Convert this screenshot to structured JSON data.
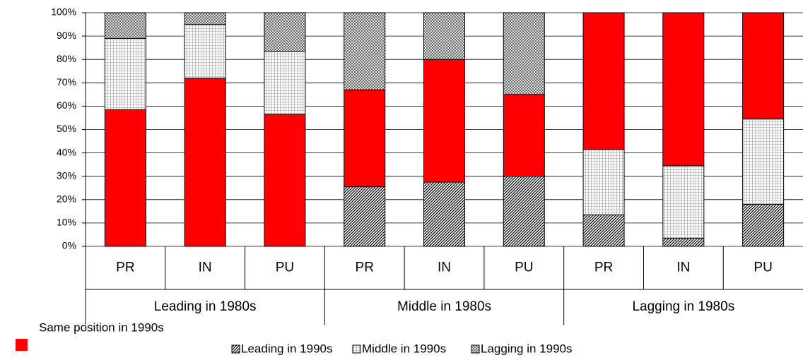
{
  "chart_data": {
    "type": "stacked-bar",
    "categories": [
      "PR",
      "IN",
      "PU",
      "PR",
      "IN",
      "PU",
      "PR",
      "IN",
      "PU"
    ],
    "groups": [
      "Leading in 1980s",
      "Middle in 1980s",
      "Lagging in 1980s"
    ],
    "series": [
      {
        "name": "Same position in 1990s",
        "color": "#ff0000",
        "pattern": "solid",
        "values": [
          58.5,
          72,
          56.5,
          41.5,
          52.5,
          35,
          58.5,
          65.5,
          45.5
        ]
      },
      {
        "name": "Leading in 1990s",
        "color": "#000000",
        "pattern": "diagonal",
        "values": [
          null,
          null,
          null,
          25.5,
          27.5,
          30,
          13.5,
          3.5,
          18
        ]
      },
      {
        "name": "Middle in 1990s",
        "color": "#999999",
        "pattern": "grid",
        "values": [
          30.5,
          23,
          27,
          null,
          null,
          null,
          28,
          31,
          36.5
        ]
      },
      {
        "name": "Lagging in 1990s",
        "color": "#555555",
        "pattern": "cross",
        "values": [
          11,
          5,
          16.5,
          33,
          20,
          35,
          null,
          null,
          null
        ]
      }
    ],
    "ylim": [
      0,
      100
    ],
    "yticks": [
      {
        "value": 0,
        "label": "0%"
      },
      {
        "value": 10,
        "label": "10%"
      },
      {
        "value": 20,
        "label": "20%"
      },
      {
        "value": 30,
        "label": "30%"
      },
      {
        "value": 40,
        "label": "40%"
      },
      {
        "value": 50,
        "label": "50%"
      },
      {
        "value": 60,
        "label": "60%"
      },
      {
        "value": 70,
        "label": "70%"
      },
      {
        "value": 80,
        "label": "80%"
      },
      {
        "value": 90,
        "label": "90%"
      },
      {
        "value": 100,
        "label": "100%"
      }
    ],
    "grid": true
  }
}
